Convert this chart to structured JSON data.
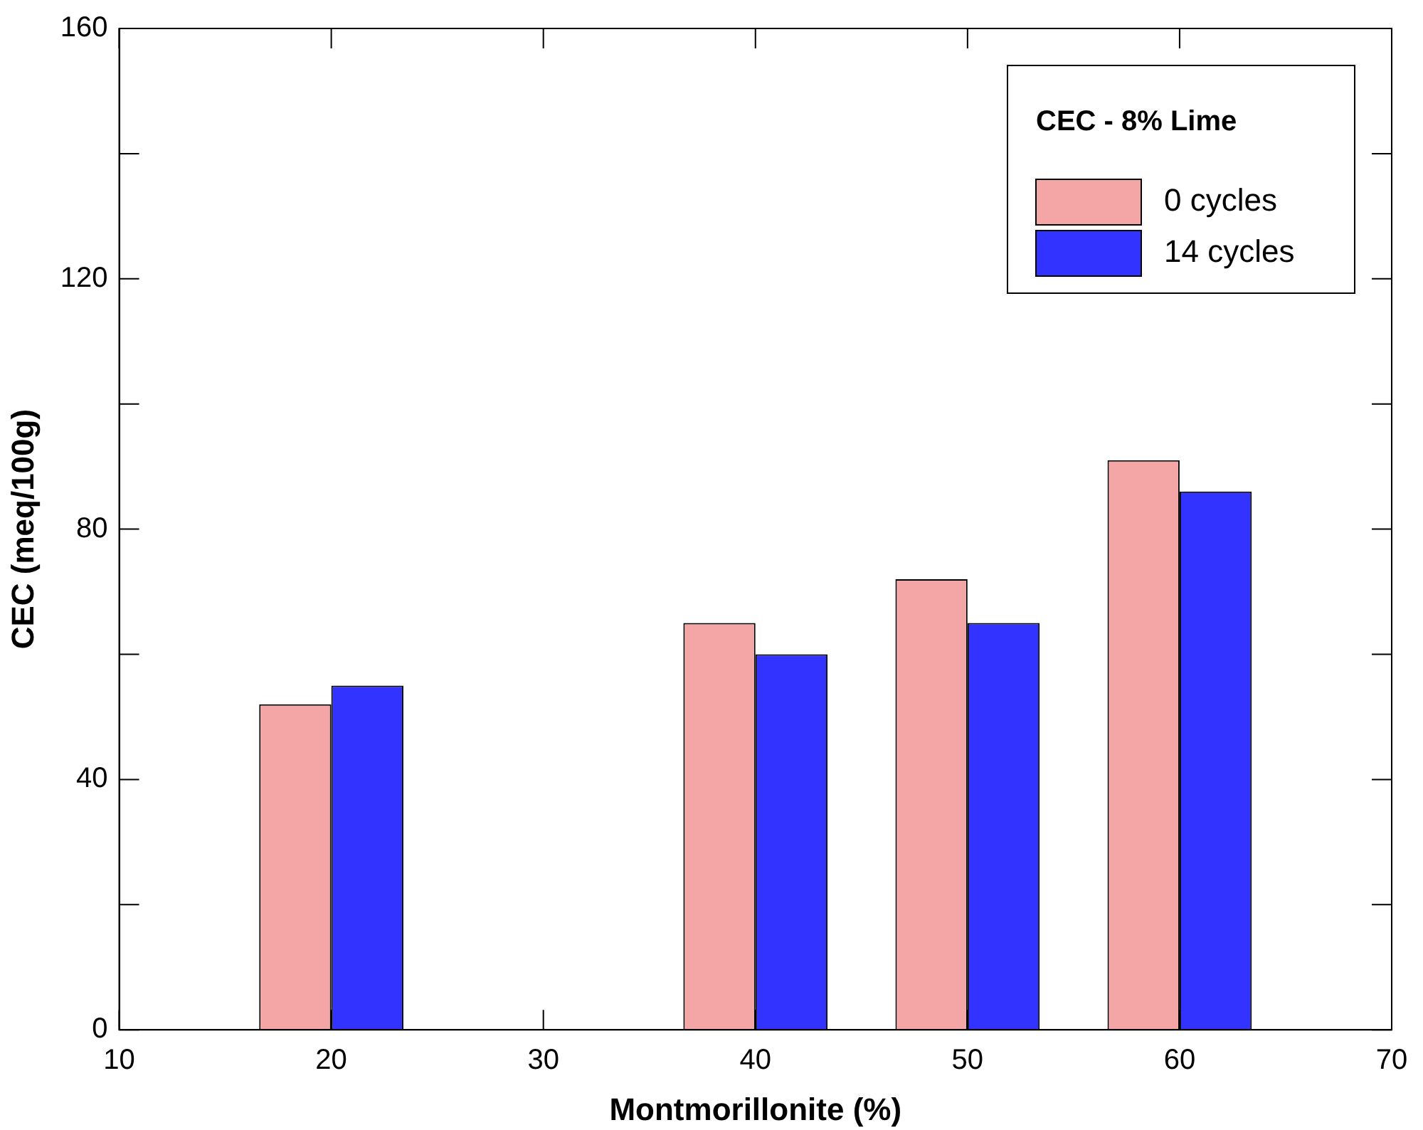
{
  "chart_data": {
    "type": "bar",
    "xlabel": "Montmorillonite (%)",
    "ylabel": "CEC (meq/100g)",
    "legend_title": "CEC - 8% Lime",
    "x": [
      20,
      40,
      50,
      60
    ],
    "series": [
      {
        "name": "0 cycles",
        "color": "#f4a6a6",
        "values": [
          52,
          65,
          72,
          91
        ]
      },
      {
        "name": "14 cycles",
        "color": "#3333ff",
        "values": [
          55,
          60,
          65,
          86
        ]
      }
    ],
    "xlim": [
      10,
      70
    ],
    "xticks": [
      10,
      20,
      30,
      40,
      50,
      60,
      70
    ],
    "ylim": [
      0,
      160
    ],
    "yticks": [
      0,
      {
        "value": 20,
        "label": null
      },
      40,
      {
        "value": 60,
        "label": null
      },
      80,
      {
        "value": 100,
        "label": null
      },
      120,
      {
        "value": 140,
        "label": null
      },
      160
    ],
    "grid": false,
    "legend": "top right"
  }
}
